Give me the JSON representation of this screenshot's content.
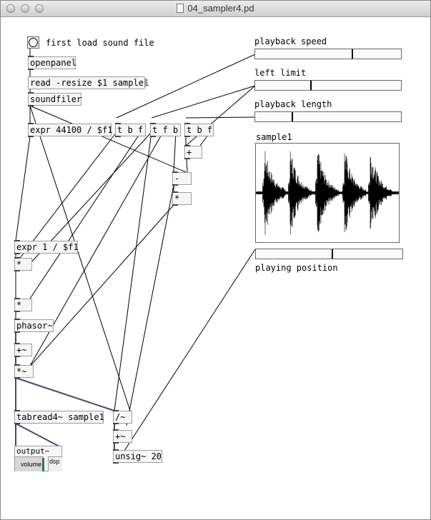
{
  "window": {
    "title": "04_sampler4.pd"
  },
  "comments": {
    "first_load": "first load sound file",
    "playback_speed": "playback speed",
    "left_limit": "left limit",
    "playback_length": "playback length",
    "playing_position": "playing position"
  },
  "objects": {
    "openpanel": "openpanel",
    "soundfiler": "soundfiler",
    "expr_sr": "expr 44100 / $f1",
    "tbf_1": "t b f",
    "tfb": "t f b",
    "tbf_2": "t b f",
    "plus": "+",
    "minus": "-",
    "times_right": "*",
    "expr_inv": "expr 1 / $f1",
    "times_1": "*",
    "times_2": "*",
    "phasor": "phasor~",
    "plus_sig": "+~",
    "times_sig": "*~",
    "tabread": "tabread4~ sample1",
    "div_sig": "/~",
    "plus_sig_2": "+~",
    "unsig": "unsig~ 20"
  },
  "messages": {
    "read_resize": "read -resize $1 sample1"
  },
  "array": {
    "name": "sample1"
  },
  "sliders": {
    "playback_speed": {
      "value": 0.67
    },
    "left_limit": {
      "value": 0.38
    },
    "playback_length": {
      "value": 0.25
    },
    "playing_position": {
      "value": 0.52
    }
  },
  "output": {
    "label": "output~",
    "volume_label": "volume",
    "dsp_label": "dsp",
    "volume_level": 0.6
  },
  "colors": {
    "audio_wire": "#4a4472",
    "control_wire": "#000000",
    "box_border": "#9c9c9c"
  }
}
